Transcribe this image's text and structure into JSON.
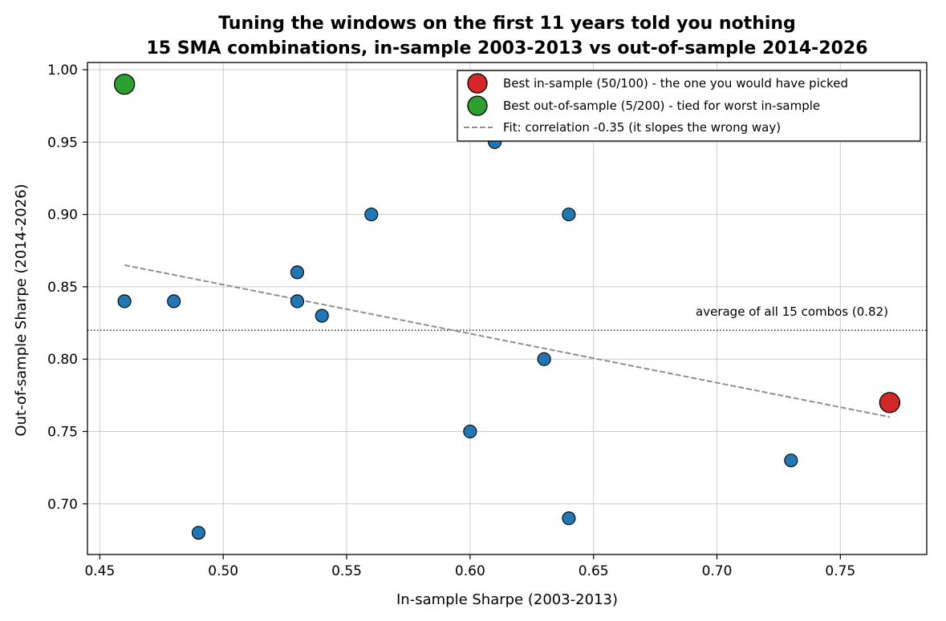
{
  "chart_data": {
    "type": "scatter",
    "title": "Tuning the windows on the first 11 years told you nothing",
    "subtitle": "15 SMA combinations, in-sample 2003-2013 vs out-of-sample 2014-2026",
    "xlabel": "In-sample Sharpe (2003-2013)",
    "ylabel": "Out-of-sample Sharpe (2014-2026)",
    "xlim": [
      0.445,
      0.785
    ],
    "ylim": [
      0.665,
      1.005
    ],
    "xticks": [
      "0.45",
      "0.50",
      "0.55",
      "0.60",
      "0.65",
      "0.70",
      "0.75"
    ],
    "yticks": [
      "0.70",
      "0.75",
      "0.80",
      "0.85",
      "0.90",
      "0.95",
      "1.00"
    ],
    "grid": true,
    "legend_position": "top-right",
    "points": [
      {
        "x": 0.46,
        "y": 0.84
      },
      {
        "x": 0.48,
        "y": 0.84
      },
      {
        "x": 0.49,
        "y": 0.68
      },
      {
        "x": 0.53,
        "y": 0.86
      },
      {
        "x": 0.53,
        "y": 0.84
      },
      {
        "x": 0.54,
        "y": 0.83
      },
      {
        "x": 0.56,
        "y": 0.9
      },
      {
        "x": 0.6,
        "y": 0.75
      },
      {
        "x": 0.61,
        "y": 0.95
      },
      {
        "x": 0.63,
        "y": 0.8
      },
      {
        "x": 0.64,
        "y": 0.9
      },
      {
        "x": 0.64,
        "y": 0.69
      },
      {
        "x": 0.73,
        "y": 0.73
      }
    ],
    "highlights": [
      {
        "label": "Best in-sample (50/100) - the one you would have picked",
        "x": 0.77,
        "y": 0.77,
        "color": "#d62728"
      },
      {
        "label": "Best out-of-sample (5/200) - tied for worst in-sample",
        "x": 0.46,
        "y": 0.99,
        "color": "#2ca02c"
      }
    ],
    "fit_line": {
      "label": "Fit: correlation -0.35 (it slopes the wrong way)",
      "x": [
        0.46,
        0.77
      ],
      "y": [
        0.865,
        0.76
      ],
      "color": "#8e8e96"
    },
    "reference_line": {
      "y": 0.82,
      "label": "average of all 15 combos (0.82)"
    },
    "point_color": "#1f77b4"
  }
}
